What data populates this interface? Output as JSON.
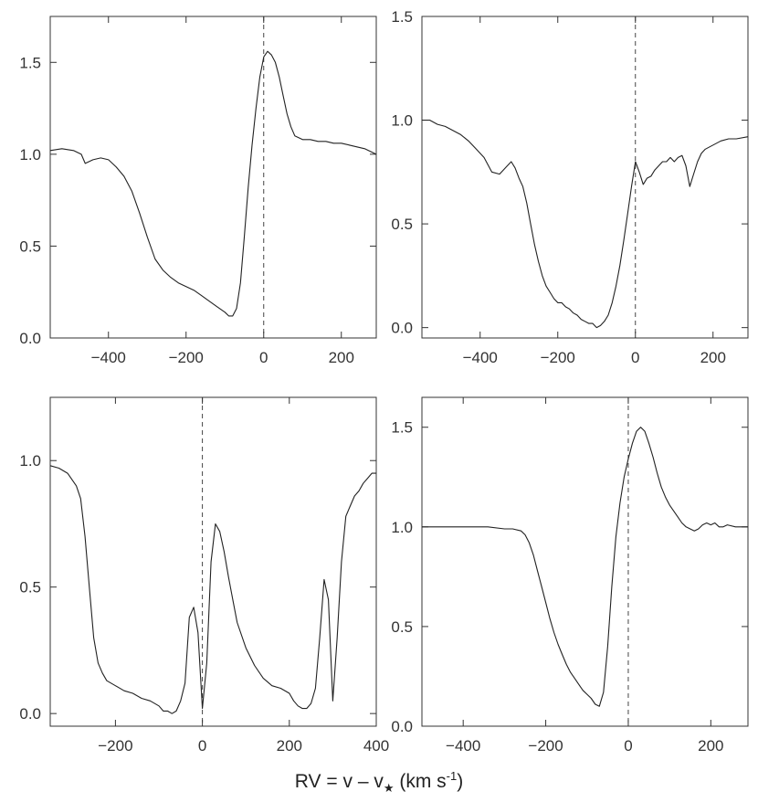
{
  "xlabel": {
    "prefix": "RV = v – v",
    "subscript": "★",
    "middle": " (km s",
    "superscript": "-1",
    "suffix": ")"
  },
  "chart_data": [
    {
      "type": "line",
      "panel": "top-left",
      "xlim": [
        -550,
        290
      ],
      "ylim": [
        0.0,
        1.75
      ],
      "xticks": [
        -400,
        -200,
        0,
        200
      ],
      "yticks": [
        0.0,
        0.5,
        1.0,
        1.5
      ],
      "ytick_labels": [
        "0.0",
        "0.5",
        "1.0",
        "1.5"
      ],
      "ytick_side": "left",
      "zero_line": 0,
      "x": [
        -550,
        -520,
        -490,
        -470,
        -460,
        -440,
        -420,
        -400,
        -380,
        -360,
        -340,
        -320,
        -300,
        -280,
        -260,
        -240,
        -220,
        -200,
        -180,
        -160,
        -140,
        -120,
        -100,
        -90,
        -80,
        -70,
        -60,
        -50,
        -40,
        -30,
        -20,
        -10,
        0,
        10,
        20,
        30,
        40,
        50,
        60,
        70,
        80,
        100,
        120,
        140,
        160,
        180,
        200,
        220,
        240,
        260,
        290
      ],
      "y": [
        1.02,
        1.03,
        1.02,
        1.0,
        0.95,
        0.97,
        0.98,
        0.97,
        0.93,
        0.88,
        0.8,
        0.68,
        0.55,
        0.43,
        0.37,
        0.33,
        0.3,
        0.28,
        0.26,
        0.23,
        0.2,
        0.17,
        0.14,
        0.12,
        0.12,
        0.16,
        0.3,
        0.55,
        0.82,
        1.05,
        1.25,
        1.42,
        1.53,
        1.56,
        1.54,
        1.5,
        1.42,
        1.32,
        1.22,
        1.15,
        1.1,
        1.08,
        1.08,
        1.07,
        1.07,
        1.06,
        1.06,
        1.05,
        1.04,
        1.03,
        1.0
      ]
    },
    {
      "type": "line",
      "panel": "top-right",
      "xlim": [
        -550,
        290
      ],
      "ylim": [
        -0.05,
        1.5
      ],
      "xticks": [
        -400,
        -200,
        0,
        200
      ],
      "yticks": [
        0.0,
        0.5,
        1.0,
        1.5
      ],
      "ytick_labels": [
        "0.0",
        "0.5",
        "1.0",
        "1.5"
      ],
      "ytick_side": "outside-left",
      "zero_line": 0,
      "x": [
        -550,
        -530,
        -510,
        -490,
        -470,
        -450,
        -430,
        -410,
        -390,
        -370,
        -350,
        -330,
        -320,
        -310,
        -300,
        -290,
        -280,
        -270,
        -260,
        -250,
        -240,
        -230,
        -220,
        -210,
        -200,
        -190,
        -180,
        -170,
        -160,
        -150,
        -140,
        -130,
        -120,
        -110,
        -100,
        -90,
        -80,
        -70,
        -60,
        -50,
        -40,
        -30,
        -20,
        -10,
        0,
        10,
        20,
        30,
        40,
        50,
        60,
        70,
        80,
        90,
        100,
        110,
        120,
        130,
        140,
        150,
        160,
        170,
        180,
        200,
        220,
        240,
        260,
        290
      ],
      "y": [
        1.0,
        1.0,
        0.98,
        0.97,
        0.95,
        0.93,
        0.9,
        0.86,
        0.82,
        0.75,
        0.74,
        0.78,
        0.8,
        0.77,
        0.72,
        0.68,
        0.6,
        0.5,
        0.4,
        0.32,
        0.25,
        0.2,
        0.17,
        0.14,
        0.12,
        0.12,
        0.1,
        0.09,
        0.07,
        0.06,
        0.04,
        0.03,
        0.02,
        0.02,
        0.0,
        0.01,
        0.03,
        0.06,
        0.12,
        0.2,
        0.3,
        0.42,
        0.55,
        0.68,
        0.8,
        0.75,
        0.69,
        0.72,
        0.73,
        0.76,
        0.78,
        0.8,
        0.8,
        0.82,
        0.8,
        0.82,
        0.83,
        0.78,
        0.68,
        0.74,
        0.8,
        0.84,
        0.86,
        0.88,
        0.9,
        0.91,
        0.91,
        0.92
      ]
    },
    {
      "type": "line",
      "panel": "bottom-left",
      "xlim": [
        -350,
        400
      ],
      "ylim": [
        -0.05,
        1.25
      ],
      "xticks": [
        -200,
        0,
        200,
        400
      ],
      "yticks": [
        0.0,
        0.5,
        1.0
      ],
      "ytick_labels": [
        "0.0",
        "0.5",
        "1.0"
      ],
      "ytick_side": "left",
      "zero_line": 0,
      "x": [
        -350,
        -330,
        -310,
        -290,
        -280,
        -270,
        -260,
        -250,
        -240,
        -230,
        -220,
        -200,
        -180,
        -160,
        -140,
        -120,
        -100,
        -90,
        -80,
        -70,
        -60,
        -50,
        -40,
        -30,
        -20,
        -10,
        0,
        10,
        20,
        30,
        40,
        50,
        60,
        70,
        80,
        100,
        120,
        140,
        160,
        180,
        200,
        210,
        220,
        230,
        240,
        250,
        260,
        270,
        280,
        290,
        300,
        310,
        320,
        330,
        340,
        350,
        360,
        370,
        380,
        390,
        400
      ],
      "y": [
        0.98,
        0.97,
        0.95,
        0.9,
        0.85,
        0.7,
        0.5,
        0.3,
        0.2,
        0.16,
        0.13,
        0.11,
        0.09,
        0.08,
        0.06,
        0.05,
        0.03,
        0.01,
        0.01,
        0.0,
        0.01,
        0.05,
        0.12,
        0.38,
        0.42,
        0.32,
        0.02,
        0.2,
        0.6,
        0.75,
        0.72,
        0.64,
        0.54,
        0.45,
        0.36,
        0.26,
        0.19,
        0.14,
        0.11,
        0.1,
        0.08,
        0.05,
        0.03,
        0.02,
        0.02,
        0.04,
        0.1,
        0.3,
        0.53,
        0.45,
        0.05,
        0.3,
        0.6,
        0.78,
        0.82,
        0.86,
        0.88,
        0.91,
        0.93,
        0.95,
        0.95
      ]
    },
    {
      "type": "line",
      "panel": "bottom-right",
      "xlim": [
        -500,
        290
      ],
      "ylim": [
        0.0,
        1.65
      ],
      "xticks": [
        -400,
        -200,
        0,
        200
      ],
      "yticks": [
        0.0,
        0.5,
        1.0,
        1.5
      ],
      "ytick_labels": [
        "0.0",
        "0.5",
        "1.0",
        "1.5"
      ],
      "ytick_side": "outside-left",
      "zero_line": 0,
      "x": [
        -500,
        -460,
        -420,
        -380,
        -340,
        -300,
        -280,
        -260,
        -250,
        -240,
        -230,
        -220,
        -210,
        -200,
        -190,
        -180,
        -170,
        -160,
        -150,
        -140,
        -130,
        -120,
        -110,
        -100,
        -90,
        -80,
        -70,
        -60,
        -50,
        -40,
        -30,
        -20,
        -10,
        0,
        10,
        20,
        30,
        40,
        50,
        60,
        70,
        80,
        90,
        100,
        110,
        120,
        130,
        140,
        150,
        160,
        170,
        180,
        190,
        200,
        210,
        220,
        230,
        240,
        260,
        290
      ],
      "y": [
        1.0,
        1.0,
        1.0,
        1.0,
        1.0,
        0.99,
        0.99,
        0.98,
        0.96,
        0.92,
        0.86,
        0.78,
        0.7,
        0.62,
        0.54,
        0.47,
        0.41,
        0.36,
        0.31,
        0.27,
        0.24,
        0.21,
        0.18,
        0.16,
        0.14,
        0.11,
        0.1,
        0.17,
        0.4,
        0.7,
        0.95,
        1.12,
        1.25,
        1.34,
        1.42,
        1.48,
        1.5,
        1.48,
        1.42,
        1.35,
        1.27,
        1.2,
        1.15,
        1.11,
        1.08,
        1.05,
        1.02,
        1.0,
        0.99,
        0.98,
        0.99,
        1.01,
        1.02,
        1.01,
        1.02,
        1.0,
        1.0,
        1.01,
        1.0,
        1.0
      ]
    }
  ]
}
